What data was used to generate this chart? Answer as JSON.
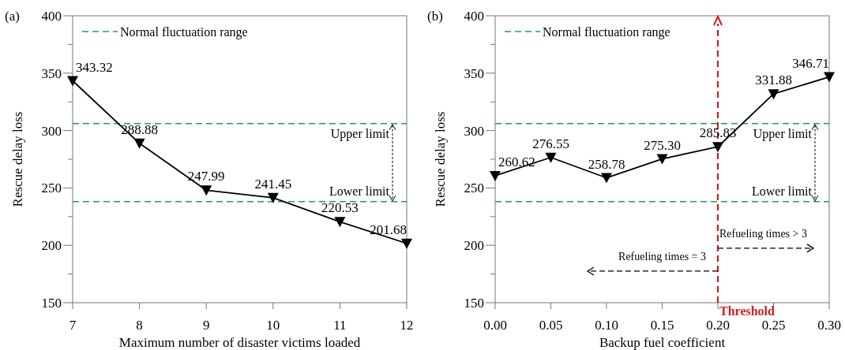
{
  "chart_data": [
    {
      "type": "line",
      "title": "(a)",
      "xlabel": "Maximum number of disaster victims loaded",
      "ylabel": "Rescue delay loss",
      "x": [
        7,
        8,
        9,
        10,
        11,
        12
      ],
      "series": [
        {
          "color": "#000000",
          "values": [
            343.32,
            288.88,
            247.99,
            241.45,
            220.53,
            201.68
          ]
        }
      ],
      "xlim": [
        7,
        12
      ],
      "xticks": [
        7,
        8,
        9,
        10,
        11,
        12
      ],
      "ylim": [
        150,
        400
      ],
      "yticks": [
        150,
        {
          "value": 175,
          "label": null
        },
        200,
        {
          "value": 225,
          "label": null
        },
        250,
        {
          "value": 275,
          "label": null
        },
        300,
        {
          "value": 325,
          "label": null
        },
        350,
        {
          "value": 375,
          "label": null
        },
        400
      ],
      "ref_lines": [
        {
          "axis": "y",
          "value": 306,
          "label": "Upper limit",
          "color": "#1fa04a",
          "line_style": "dashed"
        },
        {
          "axis": "y",
          "value": 238,
          "label": "Lower limit",
          "color": "#1fa04a",
          "line_style": "dashed"
        }
      ],
      "annotations": [
        "Normal fluctuation range"
      ],
      "data_labels": true,
      "marker": "triangle",
      "line_style": "solid"
    },
    {
      "type": "line",
      "title": "(b)",
      "xlabel": "Backup fuel coefficient",
      "ylabel": "Rescue delay loss",
      "x": [
        0,
        0.05,
        0.1,
        0.15,
        0.2,
        0.25,
        0.3
      ],
      "series": [
        {
          "color": "#000000",
          "values": [
            260.62,
            276.55,
            258.78,
            275.3,
            285.83,
            331.88,
            346.71
          ],
          "value_labels": [
            "260.62",
            "276.55",
            "258.78",
            "275.30",
            "285.83",
            "331.88",
            "346.71"
          ]
        }
      ],
      "xlim": [
        0,
        0.3
      ],
      "xticks": [
        {
          "value": 0,
          "label": "0.00"
        },
        0.05,
        {
          "value": 0.1,
          "label": "0.10"
        },
        0.15,
        {
          "value": 0.2,
          "label": "0.20"
        },
        0.25,
        {
          "value": 0.3,
          "label": "0.30"
        }
      ],
      "ylim": [
        150,
        400
      ],
      "yticks": [
        150,
        {
          "value": 175,
          "label": null
        },
        200,
        {
          "value": 225,
          "label": null
        },
        250,
        {
          "value": 275,
          "label": null
        },
        300,
        {
          "value": 325,
          "label": null
        },
        350,
        {
          "value": 375,
          "label": null
        },
        400
      ],
      "ref_lines": [
        {
          "axis": "y",
          "value": 306,
          "label": "Upper limit",
          "color": "#1fa04a",
          "line_style": "dashed"
        },
        {
          "axis": "y",
          "value": 238,
          "label": "Lower limit",
          "color": "#1fa04a",
          "line_style": "dashed"
        },
        {
          "axis": "x",
          "value": 0.2,
          "label": "Threshold",
          "color": "#cc1f1f",
          "line_style": "dashed"
        }
      ],
      "annotations": [
        "Normal fluctuation range",
        "Refueling times = 3",
        "Refueling times > 3"
      ],
      "marker": "triangle",
      "line_style": "solid"
    }
  ]
}
